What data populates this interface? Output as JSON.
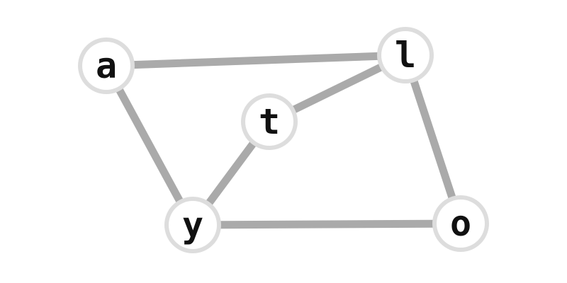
{
  "colors": {
    "background": "#ffffff",
    "edge": "#aaaaaa",
    "node_fill": "#ffffff",
    "node_stroke": "#dddddd",
    "label": "#111111"
  },
  "nodes": [
    {
      "id": "a",
      "label": "a"
    },
    {
      "id": "l",
      "label": "l"
    },
    {
      "id": "t",
      "label": "t"
    },
    {
      "id": "y",
      "label": "y"
    },
    {
      "id": "o",
      "label": "o"
    }
  ],
  "edges": [
    {
      "from": "a",
      "to": "l"
    },
    {
      "from": "a",
      "to": "y"
    },
    {
      "from": "t",
      "to": "l"
    },
    {
      "from": "t",
      "to": "y"
    },
    {
      "from": "l",
      "to": "o"
    },
    {
      "from": "y",
      "to": "o"
    }
  ]
}
